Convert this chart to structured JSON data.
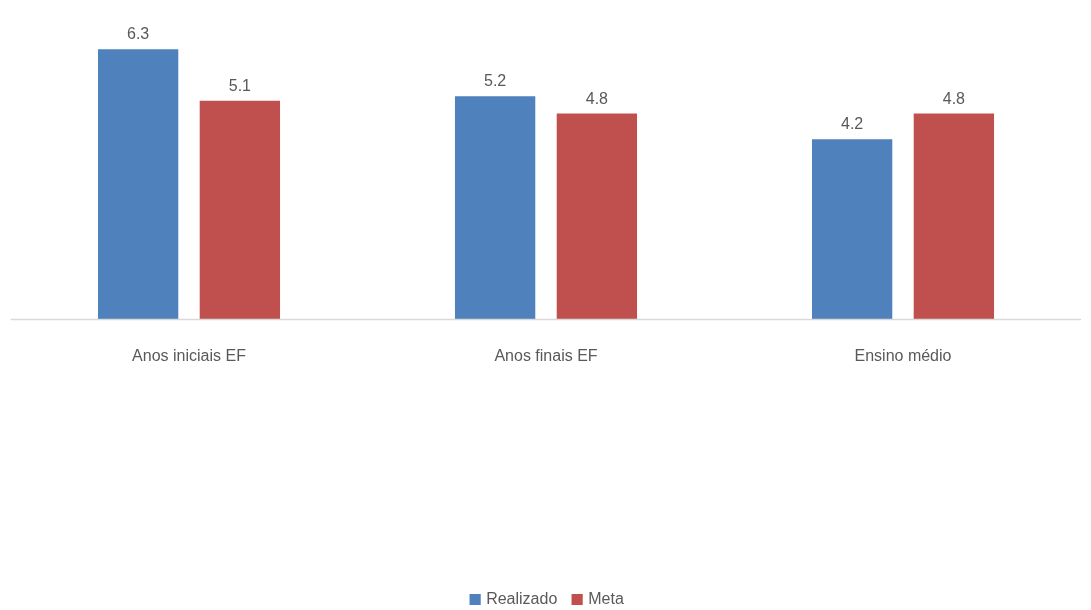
{
  "chart_data": {
    "type": "bar",
    "categories": [
      "Anos iniciais EF",
      "Anos finais EF",
      "Ensino médio"
    ],
    "series": [
      {
        "name": "Realizado",
        "color": "#4f81bd",
        "values": [
          6.3,
          5.2,
          4.2
        ]
      },
      {
        "name": "Meta",
        "color": "#c0504d",
        "values": [
          5.1,
          4.8,
          4.8
        ]
      }
    ],
    "tick_labels": "x",
    "grid": false,
    "legend": "bottom",
    "data_labels": true
  }
}
